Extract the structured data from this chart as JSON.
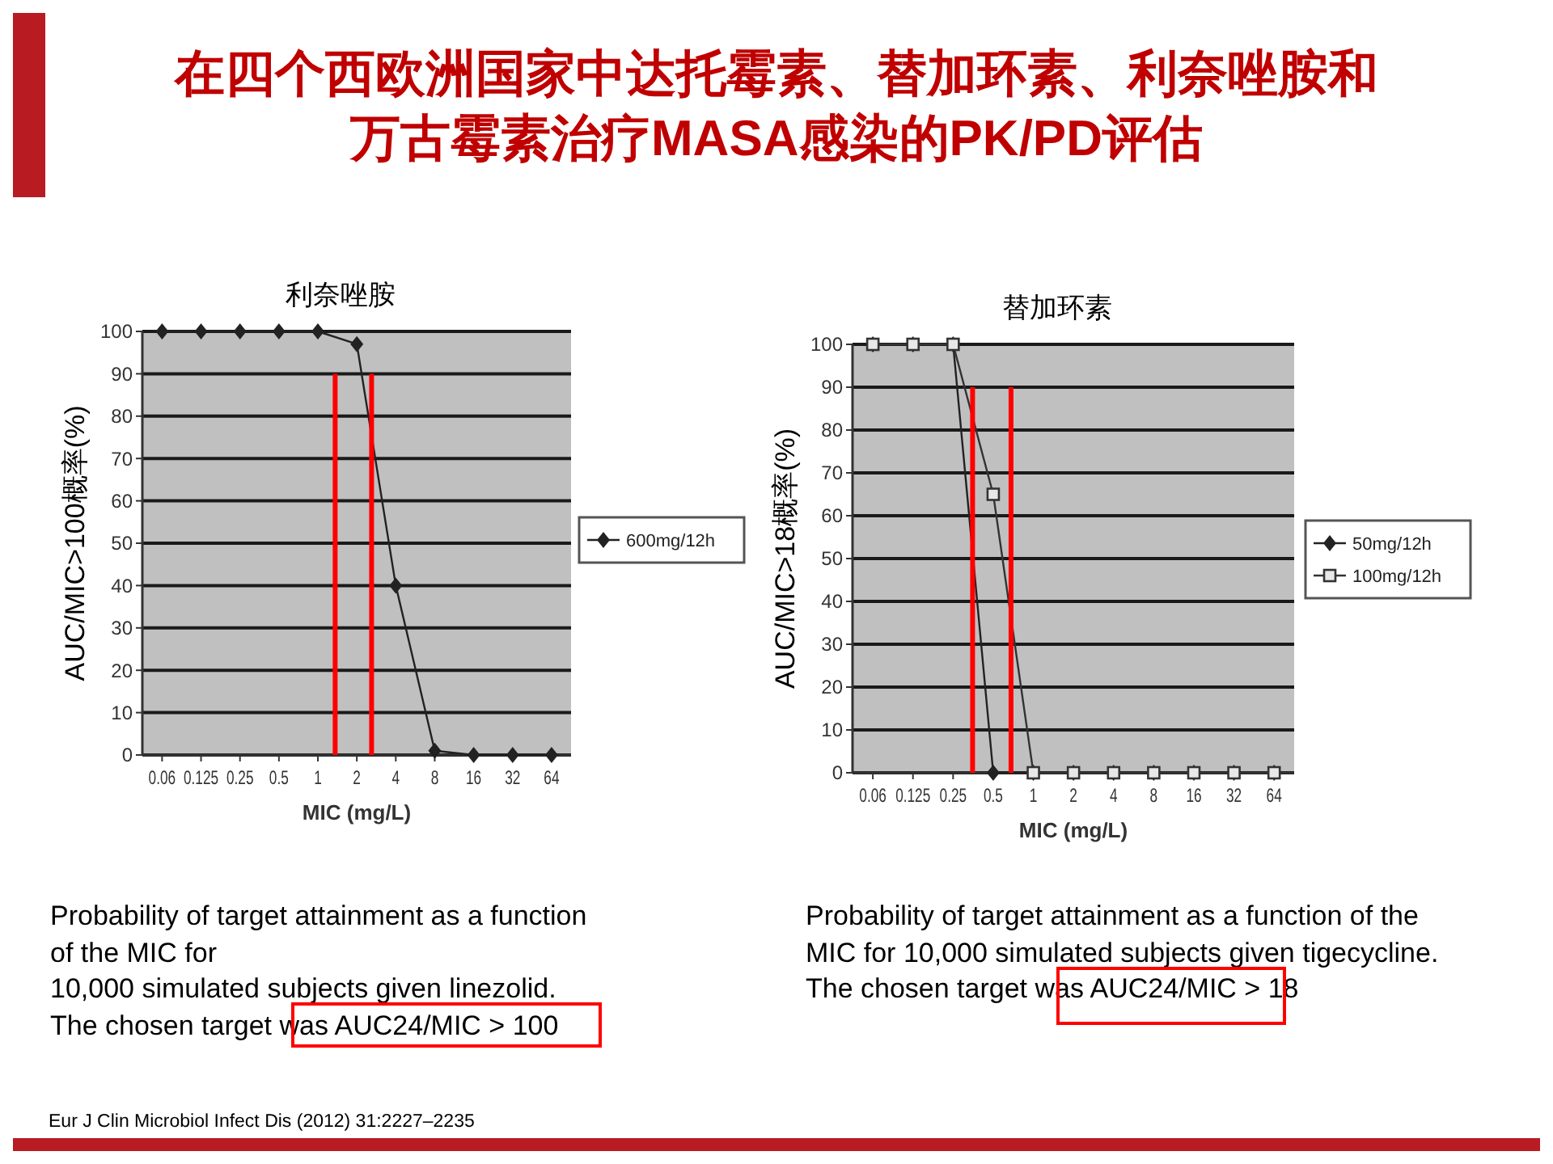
{
  "chart_data": [
    {
      "type": "line",
      "title": "利奈唑胺",
      "xlabel": "MIC (mg/L)",
      "ylabel": "AUC/MIC>100概率(%)",
      "log": "x",
      "grid": "y",
      "legend": "right",
      "x": [
        0.0625,
        0.125,
        0.25,
        0.5,
        1,
        2,
        4,
        8,
        16,
        32,
        64
      ],
      "series": [
        {
          "name": "600mg/12h",
          "color": "#222222",
          "marker": "diamond",
          "values": [
            100,
            100,
            100,
            100,
            100,
            97,
            40,
            1,
            0,
            0,
            0
          ]
        }
      ],
      "xlim": [
        0.044,
        90.5
      ],
      "xticks": [
        {
          "value": 0.0625,
          "label": "0.06"
        },
        0.125,
        0.25,
        0.5,
        1,
        2,
        4,
        8,
        16,
        32,
        64
      ],
      "ylim": [
        0,
        100
      ],
      "yticks": [
        0,
        10,
        20,
        30,
        40,
        50,
        60,
        70,
        80,
        90,
        100
      ],
      "ref_lines": [
        {
          "axis": "x",
          "value": 1.36,
          "color": "#ff0000"
        },
        {
          "axis": "x",
          "value": 2.6,
          "color": "#ff0000"
        }
      ],
      "annotations": [
        "在四个西欧洲国家中达托霉素、替加环素、利奈唑胺和万古霉素治疗MASA感染的PK/PD评估",
        "Probability of target attainment as a function\nof the MIC for\n10,000 simulated subjects given linezolid.\nThe chosen target was AUC24/MIC > 100",
        "Eur J Clin Microbiol Infect Dis (2012) 31:2227–2235"
      ]
    },
    {
      "type": "line",
      "title": "替加环素",
      "xlabel": "MIC (mg/L)",
      "ylabel": "AUC/MIC>18概率(%)",
      "log": "x",
      "grid": "y",
      "legend": "right",
      "x": [
        0.0625,
        0.125,
        0.25,
        0.5,
        1,
        2,
        4,
        8,
        16,
        32,
        64
      ],
      "series": [
        {
          "name": "50mg/12h",
          "color": "#222222",
          "marker": "diamond",
          "values": [
            100,
            100,
            100,
            0,
            0,
            0,
            0,
            0,
            0,
            0,
            0
          ]
        },
        {
          "name": "100mg/12h",
          "color": "#333333",
          "marker": "square",
          "values": [
            100,
            100,
            100,
            65,
            0,
            0,
            0,
            0,
            0,
            0,
            0
          ]
        }
      ],
      "xlim": [
        0.044,
        90.5
      ],
      "xticks": [
        {
          "value": 0.0625,
          "label": "0.06"
        },
        0.125,
        0.25,
        0.5,
        1,
        2,
        4,
        8,
        16,
        32,
        64
      ],
      "ylim": [
        0,
        100
      ],
      "yticks": [
        0,
        10,
        20,
        30,
        40,
        50,
        60,
        70,
        80,
        90,
        100
      ],
      "ref_lines": [
        {
          "axis": "x",
          "value": 0.35,
          "color": "#ff0000"
        },
        {
          "axis": "x",
          "value": 0.68,
          "color": "#ff0000"
        }
      ],
      "annotations": [
        "Probability of target attainment as a function of the\nMIC for 10,000 simulated subjects given tigecycline.\nThe chosen target was AUC24/MIC > 18"
      ]
    }
  ]
}
